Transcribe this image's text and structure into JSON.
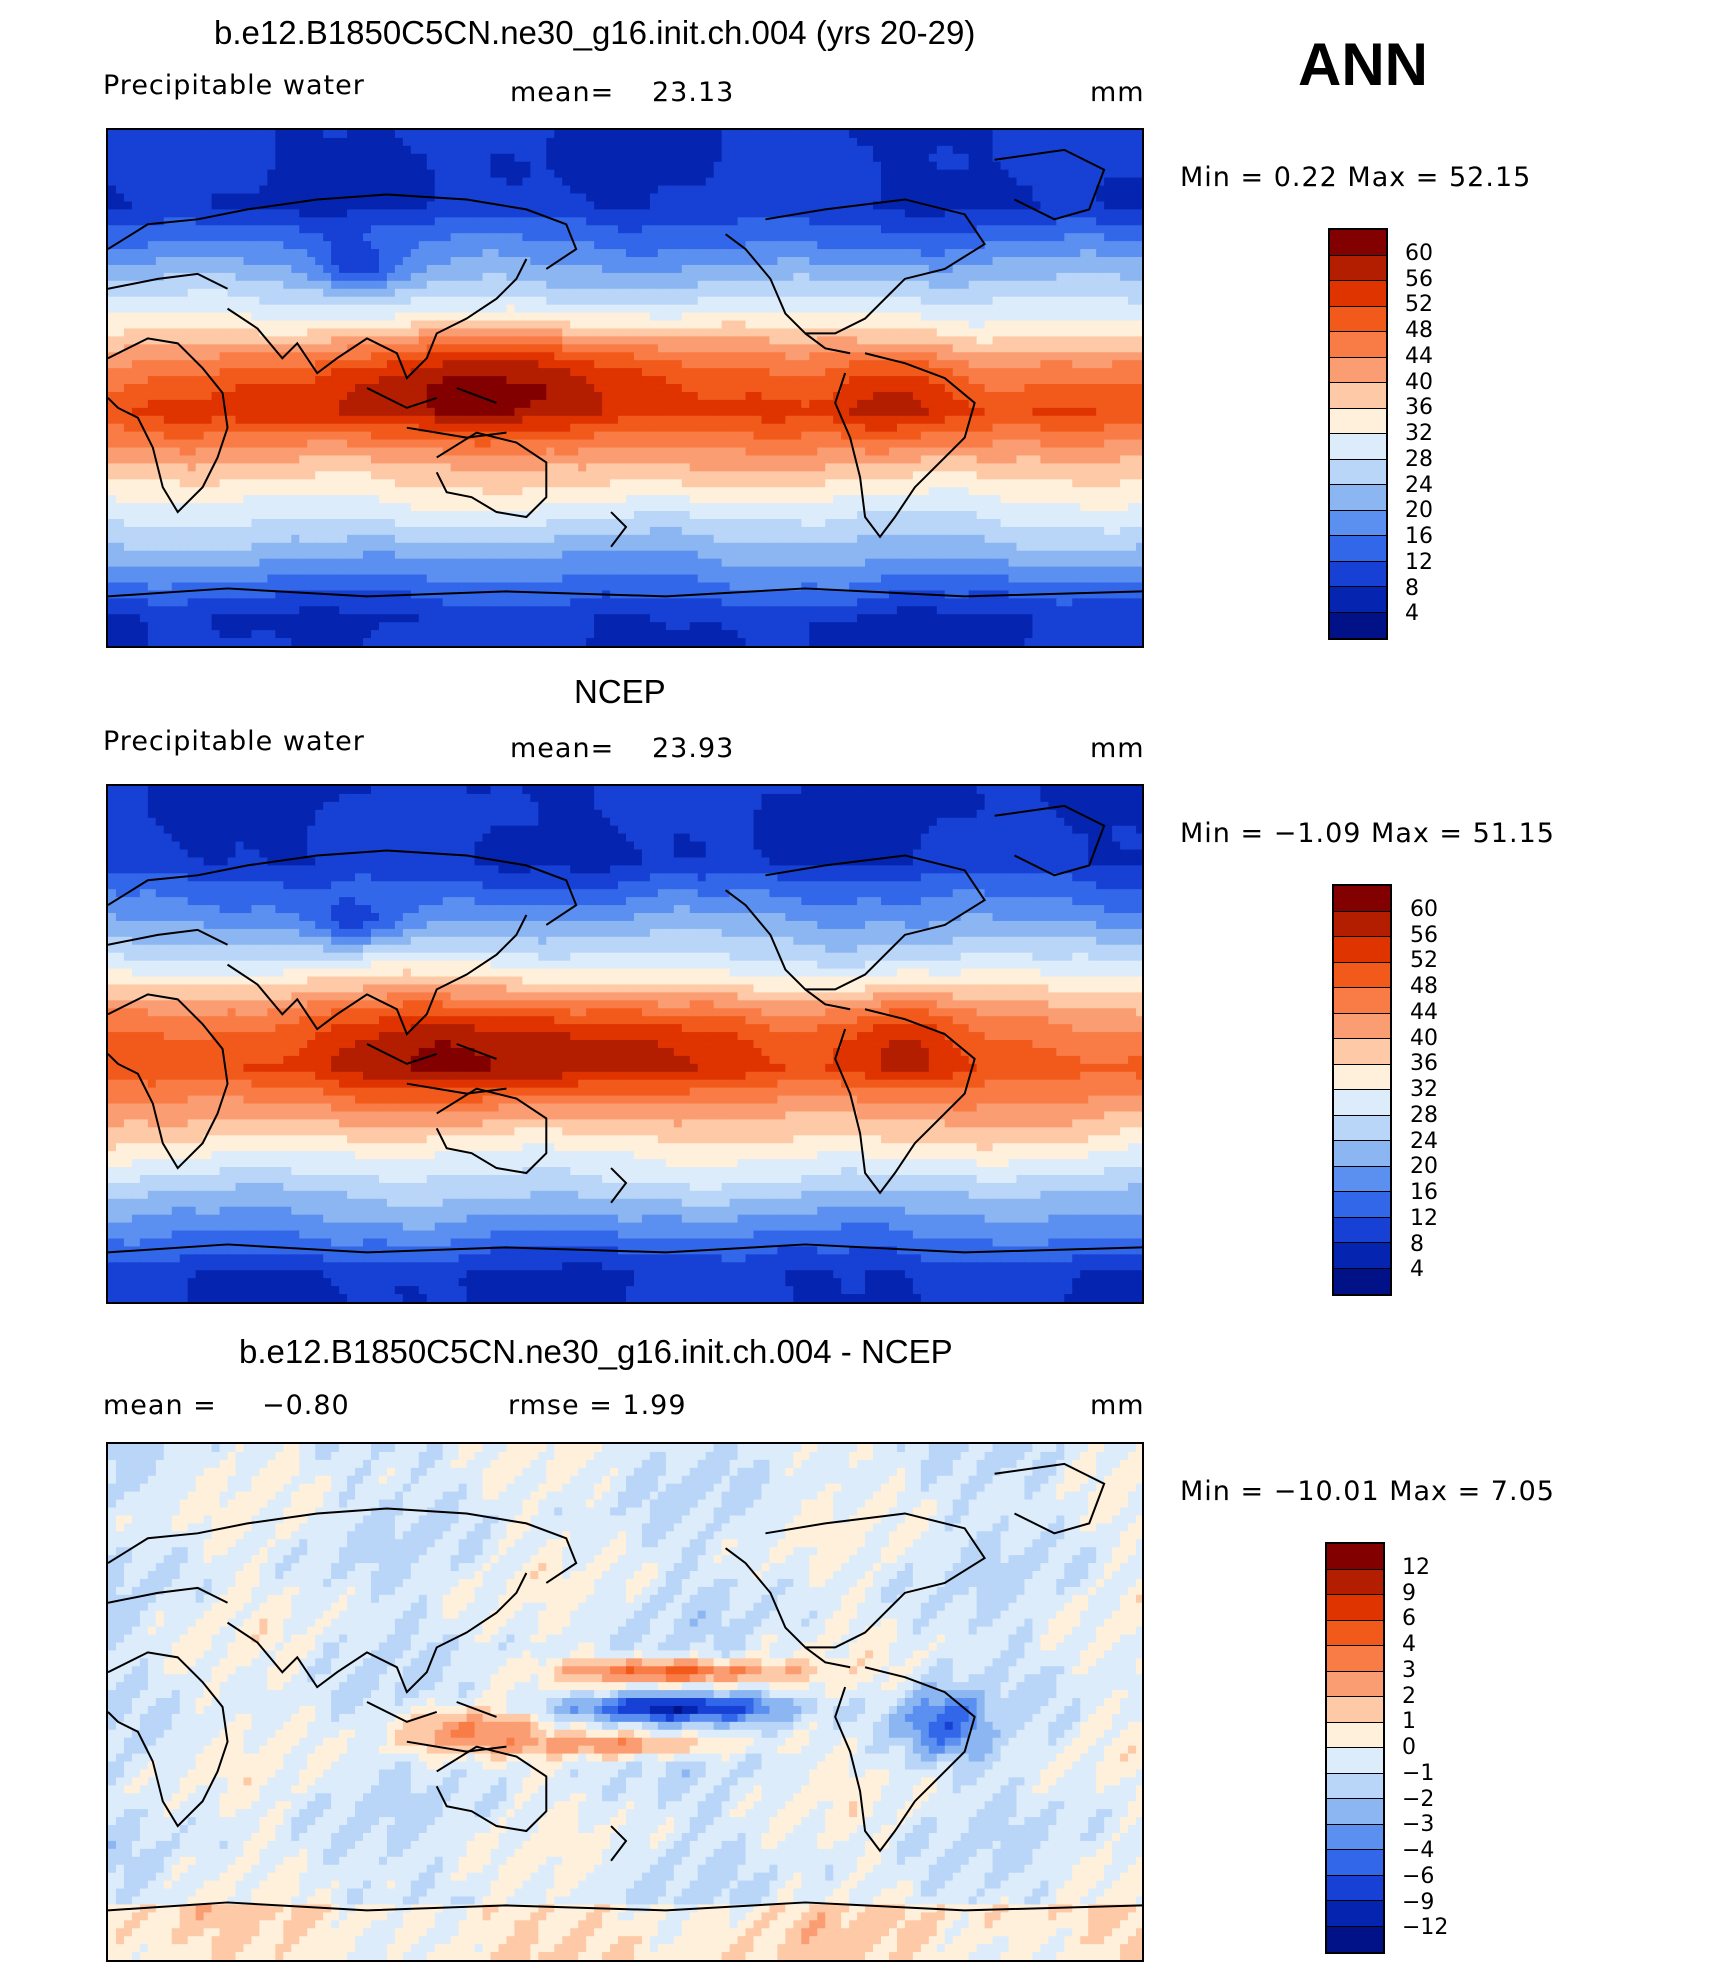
{
  "header": {
    "season": "ANN"
  },
  "panels": [
    {
      "title": "b.e12.B1850C5CN.ne30_g16.init.ch.004 (yrs 20-29)",
      "variable": "Precipitable  water",
      "stat_label": "mean=",
      "stat_value": "23.13",
      "units": "mm",
      "min_max": "Min  =     0.22  Max  =    52.15",
      "kind": "field",
      "colorbar": {
        "labels": [
          "60",
          "56",
          "52",
          "48",
          "44",
          "40",
          "36",
          "32",
          "28",
          "24",
          "20",
          "16",
          "12",
          "8",
          "4"
        ],
        "colors": [
          "#830000",
          "#b31d00",
          "#df3300",
          "#f25a1c",
          "#f97c46",
          "#fb9d72",
          "#fdc9a6",
          "#fff0dc",
          "#dcecfa",
          "#b9d5f7",
          "#8cb6f1",
          "#5b8ff0",
          "#3367ea",
          "#1740d4",
          "#0524b0",
          "#011187"
        ]
      }
    },
    {
      "title": "NCEP",
      "variable": "Precipitable  water",
      "stat_label": "mean=",
      "stat_value": "23.93",
      "units": "mm",
      "min_max": "Min  =   −1.09  Max  =    51.15",
      "kind": "field",
      "colorbar": {
        "labels": [
          "60",
          "56",
          "52",
          "48",
          "44",
          "40",
          "36",
          "32",
          "28",
          "24",
          "20",
          "16",
          "12",
          "8",
          "4"
        ],
        "colors": [
          "#830000",
          "#b31d00",
          "#df3300",
          "#f25a1c",
          "#f97c46",
          "#fb9d72",
          "#fdc9a6",
          "#fff0dc",
          "#dcecfa",
          "#b9d5f7",
          "#8cb6f1",
          "#5b8ff0",
          "#3367ea",
          "#1740d4",
          "#0524b0",
          "#011187"
        ]
      }
    },
    {
      "title": "b.e12.B1850C5CN.ne30_g16.init.ch.004 - NCEP",
      "variable": "mean  =",
      "stat_label": "−0.80",
      "stat_value": "rmse  =      1.99",
      "units": "mm",
      "min_max": "Min  =  −10.01  Max  =      7.05",
      "kind": "diff",
      "colorbar": {
        "labels": [
          "12",
          "9",
          "6",
          "4",
          "3",
          "2",
          "1",
          "0",
          "−1",
          "−2",
          "−3",
          "−4",
          "−6",
          "−9",
          "−12"
        ],
        "colors": [
          "#830000",
          "#b31d00",
          "#df3300",
          "#f25a1c",
          "#f97c46",
          "#fb9d72",
          "#fdc9a6",
          "#fff0dc",
          "#dcecfa",
          "#b9d5f7",
          "#8cb6f1",
          "#5b8ff0",
          "#3367ea",
          "#1740d4",
          "#0524b0",
          "#011187"
        ]
      }
    }
  ]
}
